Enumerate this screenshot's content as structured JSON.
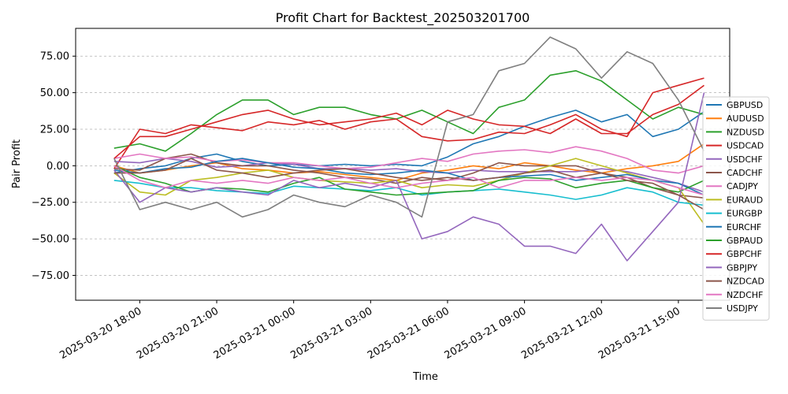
{
  "chart_data": {
    "type": "line",
    "title": "Profit Chart for Backtest_202503201700",
    "xlabel": "Time",
    "ylabel": "Pair Profit",
    "x_range_hours": [
      -1.5,
      24.0
    ],
    "ylim": [
      -92,
      94
    ],
    "yticks": [
      -75,
      -50,
      -25,
      0,
      25,
      50,
      75
    ],
    "ytick_labels": [
      "−75.00",
      "−50.00",
      "−25.00",
      "0.00",
      "25.00",
      "50.00",
      "75.00"
    ],
    "xticks_hours": [
      1,
      4,
      7,
      10,
      13,
      16,
      19,
      22
    ],
    "xtick_labels": [
      "2025-03-20 18:00",
      "2025-03-20 21:00",
      "2025-03-21 00:00",
      "2025-03-21 03:00",
      "2025-03-21 06:00",
      "2025-03-21 09:00",
      "2025-03-21 12:00",
      "2025-03-21 15:00"
    ],
    "grid": "y",
    "legend_position": "right",
    "x_hours": [
      0,
      1,
      2,
      3,
      4,
      5,
      6,
      7,
      8,
      9,
      10,
      11,
      12,
      13,
      14,
      15,
      16,
      17,
      18,
      19,
      20,
      21,
      22,
      23
    ],
    "series": [
      {
        "name": "GBPUSD",
        "color": "#1f77b4",
        "values": [
          -5,
          -2,
          0,
          5,
          8,
          3,
          0,
          1,
          0,
          1,
          0,
          1,
          0,
          6,
          15,
          20,
          27,
          33,
          38,
          30,
          35,
          20,
          25,
          37
        ]
      },
      {
        "name": "AUDUSD",
        "color": "#ff7f0e",
        "values": [
          0,
          -5,
          -3,
          0,
          2,
          -2,
          -3,
          -5,
          -4,
          -6,
          -8,
          -10,
          -5,
          -3,
          0,
          -2,
          2,
          0,
          -3,
          -5,
          -2,
          0,
          3,
          15
        ]
      },
      {
        "name": "NZDUSD",
        "color": "#2ca02c",
        "values": [
          12,
          15,
          10,
          22,
          35,
          45,
          45,
          35,
          40,
          40,
          35,
          32,
          38,
          30,
          22,
          40,
          45,
          62,
          65,
          58,
          45,
          32,
          40,
          35
        ]
      },
      {
        "name": "USDCAD",
        "color": "#d62728",
        "values": [
          -2,
          25,
          22,
          28,
          26,
          24,
          30,
          28,
          31,
          25,
          30,
          32,
          20,
          17,
          18,
          23,
          22,
          28,
          35,
          25,
          20,
          50,
          55,
          60
        ]
      },
      {
        "name": "USDCHF",
        "color": "#9467bd",
        "values": [
          3,
          2,
          5,
          3,
          -1,
          0,
          2,
          1,
          -2,
          -2,
          -3,
          -2,
          -4,
          -5,
          -3,
          -4,
          -4,
          -4,
          -4,
          -2,
          -4,
          -8,
          -12,
          -18
        ]
      },
      {
        "name": "CADCHF",
        "color": "#8c564b",
        "values": [
          -2,
          -3,
          5,
          8,
          2,
          0,
          0,
          -3,
          -5,
          -8,
          -9,
          -12,
          -8,
          -10,
          -5,
          2,
          0,
          0,
          0,
          -5,
          -8,
          -15,
          -20,
          -22
        ]
      },
      {
        "name": "CADJPY",
        "color": "#e377c2",
        "values": [
          5,
          8,
          5,
          6,
          3,
          4,
          2,
          2,
          0,
          -2,
          -1,
          2,
          5,
          3,
          8,
          10,
          11,
          9,
          13,
          10,
          5,
          -3,
          -5,
          0
        ]
      },
      {
        "name": "EURAUD",
        "color": "#bcbd22",
        "values": [
          -5,
          -18,
          -20,
          -10,
          -8,
          -5,
          -3,
          -8,
          -10,
          -11,
          -12,
          -10,
          -15,
          -13,
          -14,
          -10,
          -5,
          0,
          5,
          0,
          -5,
          -10,
          -15,
          -40
        ]
      },
      {
        "name": "EURGBP",
        "color": "#17becf",
        "values": [
          -10,
          -12,
          -15,
          -15,
          -17,
          -18,
          -19,
          -14,
          -15,
          -16,
          -17,
          -15,
          -20,
          -18,
          -17,
          -16,
          -18,
          -20,
          -23,
          -20,
          -15,
          -18,
          -25,
          -27
        ]
      },
      {
        "name": "EURCHF",
        "color": "#1f77b4",
        "values": [
          -3,
          -5,
          -2,
          -1,
          3,
          5,
          2,
          -1,
          -2,
          -5,
          -6,
          -5,
          -3,
          -5,
          -10,
          -8,
          -7,
          -6,
          -10,
          -8,
          -6,
          -10,
          -12,
          -20
        ]
      },
      {
        "name": "GBPAUD",
        "color": "#2ca02c",
        "values": [
          0,
          -8,
          -12,
          -18,
          -15,
          -16,
          -18,
          -12,
          -8,
          -16,
          -18,
          -20,
          -19,
          -18,
          -17,
          -10,
          -8,
          -9,
          -15,
          -12,
          -10,
          -15,
          -18,
          -10
        ]
      },
      {
        "name": "GBPCHF",
        "color": "#d62728",
        "values": [
          5,
          20,
          20,
          25,
          30,
          35,
          38,
          32,
          28,
          30,
          32,
          36,
          28,
          38,
          32,
          28,
          27,
          22,
          32,
          22,
          22,
          35,
          42,
          55
        ]
      },
      {
        "name": "GBPJPY",
        "color": "#9467bd",
        "values": [
          -3,
          -25,
          -15,
          -18,
          -15,
          -18,
          -20,
          -10,
          -15,
          -12,
          -15,
          -10,
          -50,
          -45,
          -35,
          -40,
          -55,
          -55,
          -60,
          -40,
          -65,
          -45,
          -25,
          50
        ]
      },
      {
        "name": "NZDCAD",
        "color": "#8c564b",
        "values": [
          -5,
          -5,
          -3,
          5,
          -3,
          -5,
          -8,
          -5,
          -3,
          -2,
          -5,
          -8,
          -10,
          -8,
          -10,
          -8,
          -5,
          -3,
          -8,
          -5,
          -10,
          -12,
          -20,
          -30
        ]
      },
      {
        "name": "NZDCHF",
        "color": "#e377c2",
        "values": [
          0,
          -10,
          -15,
          -10,
          -12,
          -10,
          -12,
          -8,
          -10,
          -8,
          -12,
          -15,
          -12,
          -10,
          -8,
          -15,
          -10,
          -10,
          -8,
          -10,
          -8,
          -10,
          -15,
          -20
        ]
      },
      {
        "name": "USDJPY",
        "color": "#7f7f7f",
        "values": [
          5,
          -30,
          -25,
          -30,
          -25,
          -35,
          -30,
          -20,
          -25,
          -28,
          -20,
          -25,
          -35,
          30,
          35,
          65,
          70,
          88,
          80,
          60,
          78,
          70,
          45,
          10
        ]
      }
    ]
  }
}
